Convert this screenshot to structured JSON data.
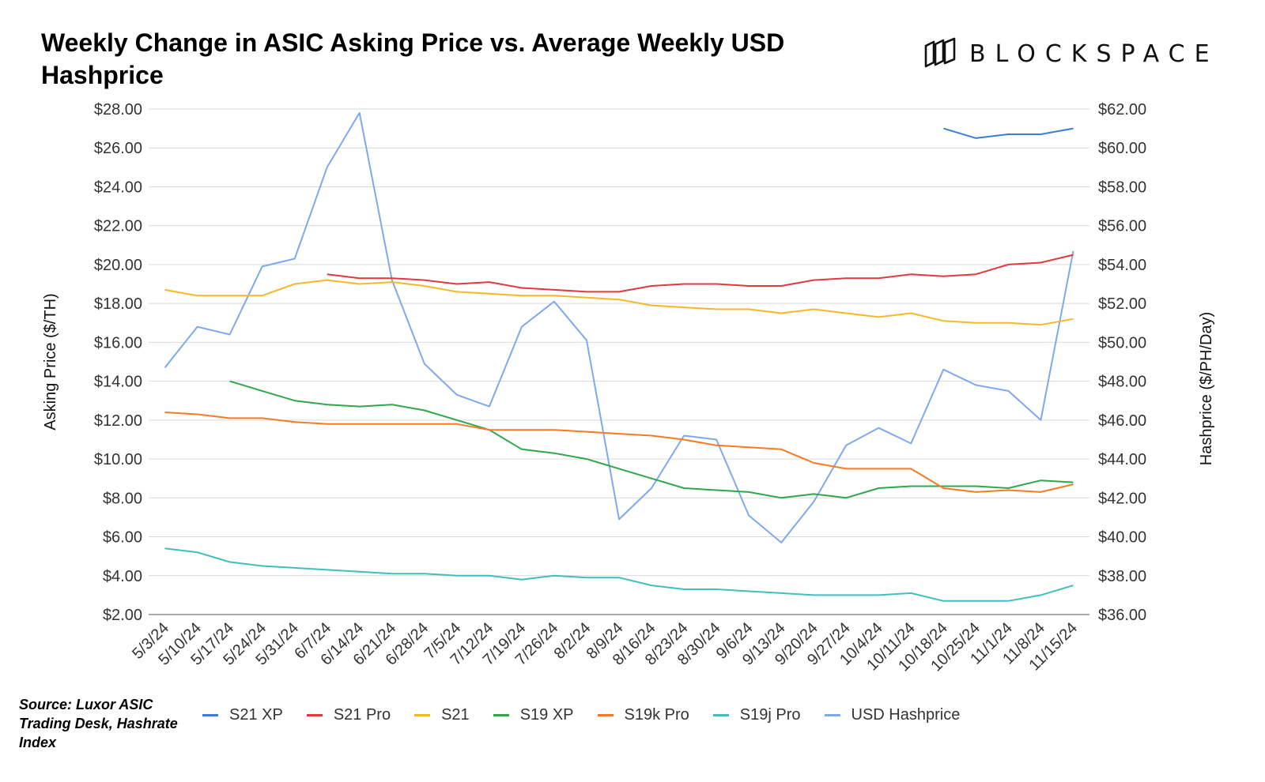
{
  "title": "Weekly Change in ASIC Asking Price vs. Average Weekly USD Hashprice",
  "logo": {
    "text": "BLOCKSPACE",
    "icon": "stacked-blocks-icon"
  },
  "source": "Source: Luxor ASIC Trading Desk, Hashrate Index",
  "chart_data": {
    "type": "line",
    "title": "Weekly Change in ASIC Asking Price vs. Average Weekly USD Hashprice",
    "xlabel": "",
    "ylabel": "Asking Price ($/TH)",
    "y2label": "Hashprice ($/PH/Day)",
    "ylim": [
      2,
      28
    ],
    "y2lim": [
      36,
      62
    ],
    "yticks": [
      "$2.00",
      "$4.00",
      "$6.00",
      "$8.00",
      "$10.00",
      "$12.00",
      "$14.00",
      "$16.00",
      "$18.00",
      "$20.00",
      "$22.00",
      "$24.00",
      "$26.00",
      "$28.00"
    ],
    "y2ticks": [
      "$36.00",
      "$38.00",
      "$40.00",
      "$42.00",
      "$44.00",
      "$46.00",
      "$48.00",
      "$50.00",
      "$52.00",
      "$54.00",
      "$56.00",
      "$58.00",
      "$60.00",
      "$62.00"
    ],
    "grid": true,
    "legend_position": "bottom",
    "categories": [
      "5/3/24",
      "5/10/24",
      "5/17/24",
      "5/24/24",
      "5/31/24",
      "6/7/24",
      "6/14/24",
      "6/21/24",
      "6/28/24",
      "7/5/24",
      "7/12/24",
      "7/19/24",
      "7/26/24",
      "8/2/24",
      "8/9/24",
      "8/16/24",
      "8/23/24",
      "8/30/24",
      "9/6/24",
      "9/13/24",
      "9/20/24",
      "9/27/24",
      "10/4/24",
      "10/11/24",
      "10/18/24",
      "10/25/24",
      "11/1/24",
      "11/8/24",
      "11/15/24"
    ],
    "series": [
      {
        "name": "S21 XP",
        "color": "#3b7ddd",
        "axis": "left",
        "values": [
          null,
          null,
          null,
          null,
          null,
          null,
          null,
          null,
          null,
          null,
          null,
          null,
          null,
          null,
          null,
          null,
          null,
          null,
          null,
          null,
          null,
          null,
          null,
          null,
          27.0,
          26.5,
          26.7,
          26.7,
          27.0
        ]
      },
      {
        "name": "S21 Pro",
        "color": "#e0393e",
        "axis": "left",
        "values": [
          null,
          null,
          null,
          null,
          null,
          19.5,
          19.3,
          19.3,
          19.2,
          19.0,
          19.1,
          18.8,
          18.7,
          18.6,
          18.6,
          18.9,
          19.0,
          19.0,
          18.9,
          18.9,
          19.2,
          19.3,
          19.3,
          19.5,
          19.4,
          19.5,
          20.0,
          20.1,
          20.5
        ]
      },
      {
        "name": "S21",
        "color": "#f6b826",
        "axis": "left",
        "values": [
          18.7,
          18.4,
          18.4,
          18.4,
          19.0,
          19.2,
          19.0,
          19.1,
          18.9,
          18.6,
          18.5,
          18.4,
          18.4,
          18.3,
          18.2,
          17.9,
          17.8,
          17.7,
          17.7,
          17.5,
          17.7,
          17.5,
          17.3,
          17.5,
          17.1,
          17.0,
          17.0,
          16.9,
          17.2
        ]
      },
      {
        "name": "S19 XP",
        "color": "#2ea84a",
        "axis": "left",
        "values": [
          null,
          null,
          14.0,
          13.5,
          13.0,
          12.8,
          12.7,
          12.8,
          12.5,
          12.0,
          11.5,
          10.5,
          10.3,
          10.0,
          9.5,
          9.0,
          8.5,
          8.4,
          8.3,
          8.0,
          8.2,
          8.0,
          8.5,
          8.6,
          8.6,
          8.6,
          8.5,
          8.9,
          8.8
        ]
      },
      {
        "name": "S19k Pro",
        "color": "#f87a22",
        "axis": "left",
        "values": [
          12.4,
          12.3,
          12.1,
          12.1,
          11.9,
          11.8,
          11.8,
          11.8,
          11.8,
          11.8,
          11.5,
          11.5,
          11.5,
          11.4,
          11.3,
          11.2,
          11.0,
          10.7,
          10.6,
          10.5,
          9.8,
          9.5,
          9.5,
          9.5,
          8.5,
          8.3,
          8.4,
          8.3,
          8.7
        ]
      },
      {
        "name": "S19j Pro",
        "color": "#3fbfbf",
        "axis": "left",
        "values": [
          5.4,
          5.2,
          4.7,
          4.5,
          4.4,
          4.3,
          4.2,
          4.1,
          4.1,
          4.0,
          4.0,
          3.8,
          4.0,
          3.9,
          3.9,
          3.5,
          3.3,
          3.3,
          3.2,
          3.1,
          3.0,
          3.0,
          3.0,
          3.1,
          2.7,
          2.7,
          2.7,
          3.0,
          3.5
        ]
      },
      {
        "name": "USD Hashprice",
        "color": "#7fa9ee",
        "axis": "right",
        "values": [
          48.7,
          50.8,
          50.4,
          53.9,
          54.3,
          59.0,
          61.8,
          53.2,
          48.9,
          47.3,
          46.7,
          50.8,
          52.1,
          50.1,
          40.9,
          42.5,
          45.2,
          45.0,
          41.1,
          39.7,
          41.8,
          44.7,
          45.6,
          44.8,
          48.6,
          47.8,
          47.5,
          46.0,
          54.7
        ]
      }
    ]
  }
}
